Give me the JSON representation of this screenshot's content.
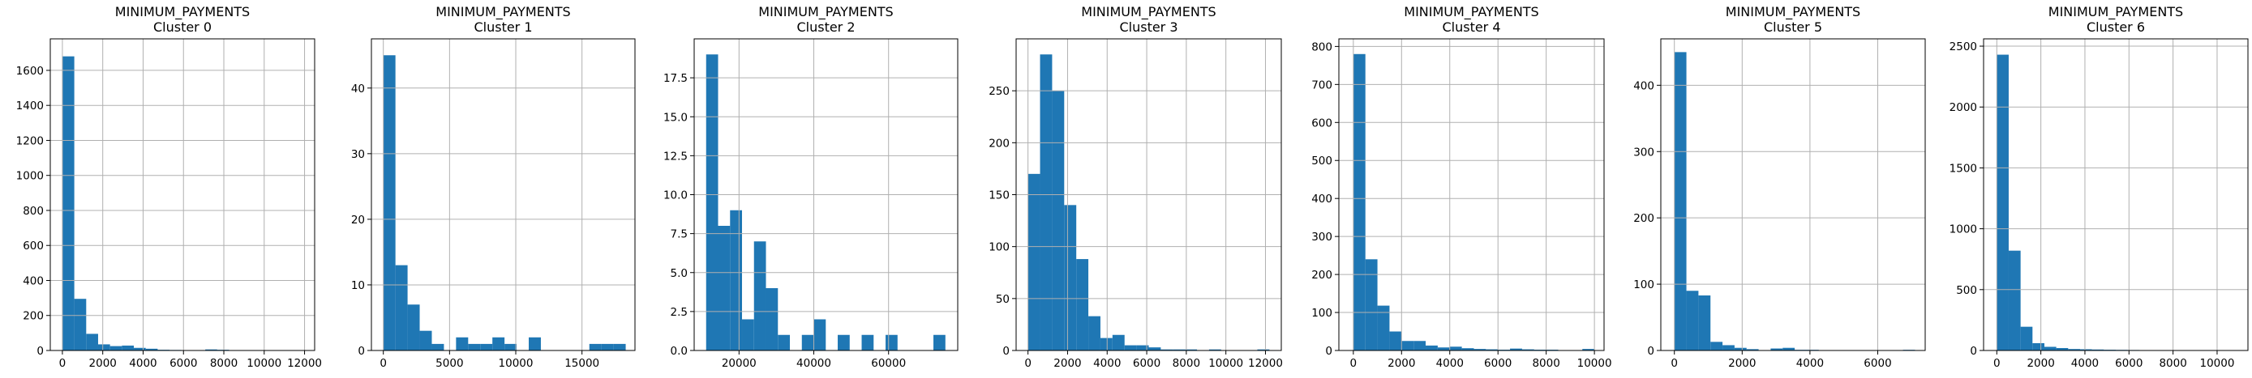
{
  "chart_data": [
    {
      "type": "bar",
      "title": "MINIMUM_PAYMENTS",
      "subtitle": "Cluster 0",
      "xlim": [
        -600,
        12500
      ],
      "ylim": [
        0,
        1780
      ],
      "xticks": [
        0,
        2000,
        4000,
        6000,
        8000,
        10000,
        12000
      ],
      "yticks": [
        0,
        200,
        400,
        600,
        800,
        1000,
        1200,
        1400,
        1600
      ],
      "grid": true,
      "bin_start": 0,
      "bin_width": 590,
      "values": [
        1680,
        295,
        95,
        35,
        25,
        28,
        15,
        10,
        4,
        3,
        2,
        2,
        6,
        4,
        2,
        2,
        1,
        2,
        0,
        2
      ]
    },
    {
      "type": "bar",
      "title": "MINIMUM_PAYMENTS",
      "subtitle": "Cluster 1",
      "xlim": [
        -900,
        19000
      ],
      "ylim": [
        0,
        47.5
      ],
      "xticks": [
        0,
        5000,
        10000,
        15000
      ],
      "yticks": [
        0,
        10,
        20,
        30,
        40
      ],
      "grid": true,
      "bin_start": 0,
      "bin_width": 915,
      "values": [
        45,
        13,
        7,
        3,
        1,
        0,
        2,
        1,
        1,
        2,
        1,
        0,
        2,
        0,
        0,
        0,
        0,
        1,
        1,
        1
      ]
    },
    {
      "type": "bar",
      "title": "MINIMUM_PAYMENTS",
      "subtitle": "Cluster 2",
      "xlim": [
        8000,
        78500
      ],
      "ylim": [
        0,
        20
      ],
      "xticks": [
        20000,
        40000,
        60000
      ],
      "yticks": [
        0,
        2.5,
        5.0,
        7.5,
        10.0,
        12.5,
        15.0,
        17.5
      ],
      "tick_labels_y": [
        "0.0",
        "2.5",
        "5.0",
        "7.5",
        "10.0",
        "12.5",
        "15.0",
        "17.5"
      ],
      "grid": true,
      "bin_start": 11200,
      "bin_width": 3200,
      "values": [
        19,
        8,
        9,
        2,
        7,
        4,
        1,
        0,
        1,
        2,
        0,
        1,
        0,
        1,
        0,
        1,
        0,
        0,
        0,
        1
      ]
    },
    {
      "type": "bar",
      "title": "MINIMUM_PAYMENTS",
      "subtitle": "Cluster 3",
      "xlim": [
        -600,
        12800
      ],
      "ylim": [
        0,
        300
      ],
      "xticks": [
        0,
        2000,
        4000,
        6000,
        8000,
        10000,
        12000
      ],
      "yticks": [
        0,
        50,
        100,
        150,
        200,
        250
      ],
      "grid": true,
      "bin_start": 0,
      "bin_width": 610,
      "values": [
        170,
        285,
        250,
        140,
        88,
        33,
        12,
        15,
        5,
        5,
        3,
        1,
        1,
        1,
        0,
        1,
        0,
        0,
        0,
        1
      ]
    },
    {
      "type": "bar",
      "title": "MINIMUM_PAYMENTS",
      "subtitle": "Cluster 4",
      "xlim": [
        -600,
        10400
      ],
      "ylim": [
        0,
        820
      ],
      "xticks": [
        0,
        2000,
        4000,
        6000,
        8000,
        10000
      ],
      "yticks": [
        0,
        100,
        200,
        300,
        400,
        500,
        600,
        700,
        800
      ],
      "grid": true,
      "bin_start": 0,
      "bin_width": 500,
      "values": [
        780,
        240,
        118,
        50,
        25,
        25,
        13,
        8,
        10,
        6,
        4,
        3,
        2,
        5,
        3,
        2,
        2,
        1,
        1,
        4
      ]
    },
    {
      "type": "bar",
      "title": "MINIMUM_PAYMENTS",
      "subtitle": "Cluster 5",
      "xlim": [
        -400,
        7400
      ],
      "ylim": [
        0,
        470
      ],
      "xticks": [
        0,
        2000,
        4000,
        6000
      ],
      "yticks": [
        0,
        100,
        200,
        300,
        400
      ],
      "grid": true,
      "bin_start": 0,
      "bin_width": 355,
      "values": [
        450,
        90,
        83,
        13,
        8,
        4,
        2,
        0,
        3,
        4,
        1,
        1,
        0,
        0,
        0,
        0,
        0,
        0,
        0,
        1
      ]
    },
    {
      "type": "bar",
      "title": "MINIMUM_PAYMENTS",
      "subtitle": "Cluster 6",
      "xlim": [
        -600,
        11400
      ],
      "ylim": [
        0,
        2560
      ],
      "xticks": [
        0,
        2000,
        4000,
        6000,
        8000,
        10000
      ],
      "yticks": [
        0,
        500,
        1000,
        1500,
        2000,
        2500
      ],
      "grid": true,
      "bin_start": 0,
      "bin_width": 540,
      "values": [
        2430,
        820,
        195,
        60,
        30,
        20,
        12,
        10,
        8,
        6,
        5,
        4,
        3,
        2,
        2,
        1,
        1,
        1,
        0,
        1
      ]
    }
  ],
  "colors": {
    "bar": "#1f77b4",
    "grid": "#b0b0b0",
    "axis": "#000000"
  }
}
